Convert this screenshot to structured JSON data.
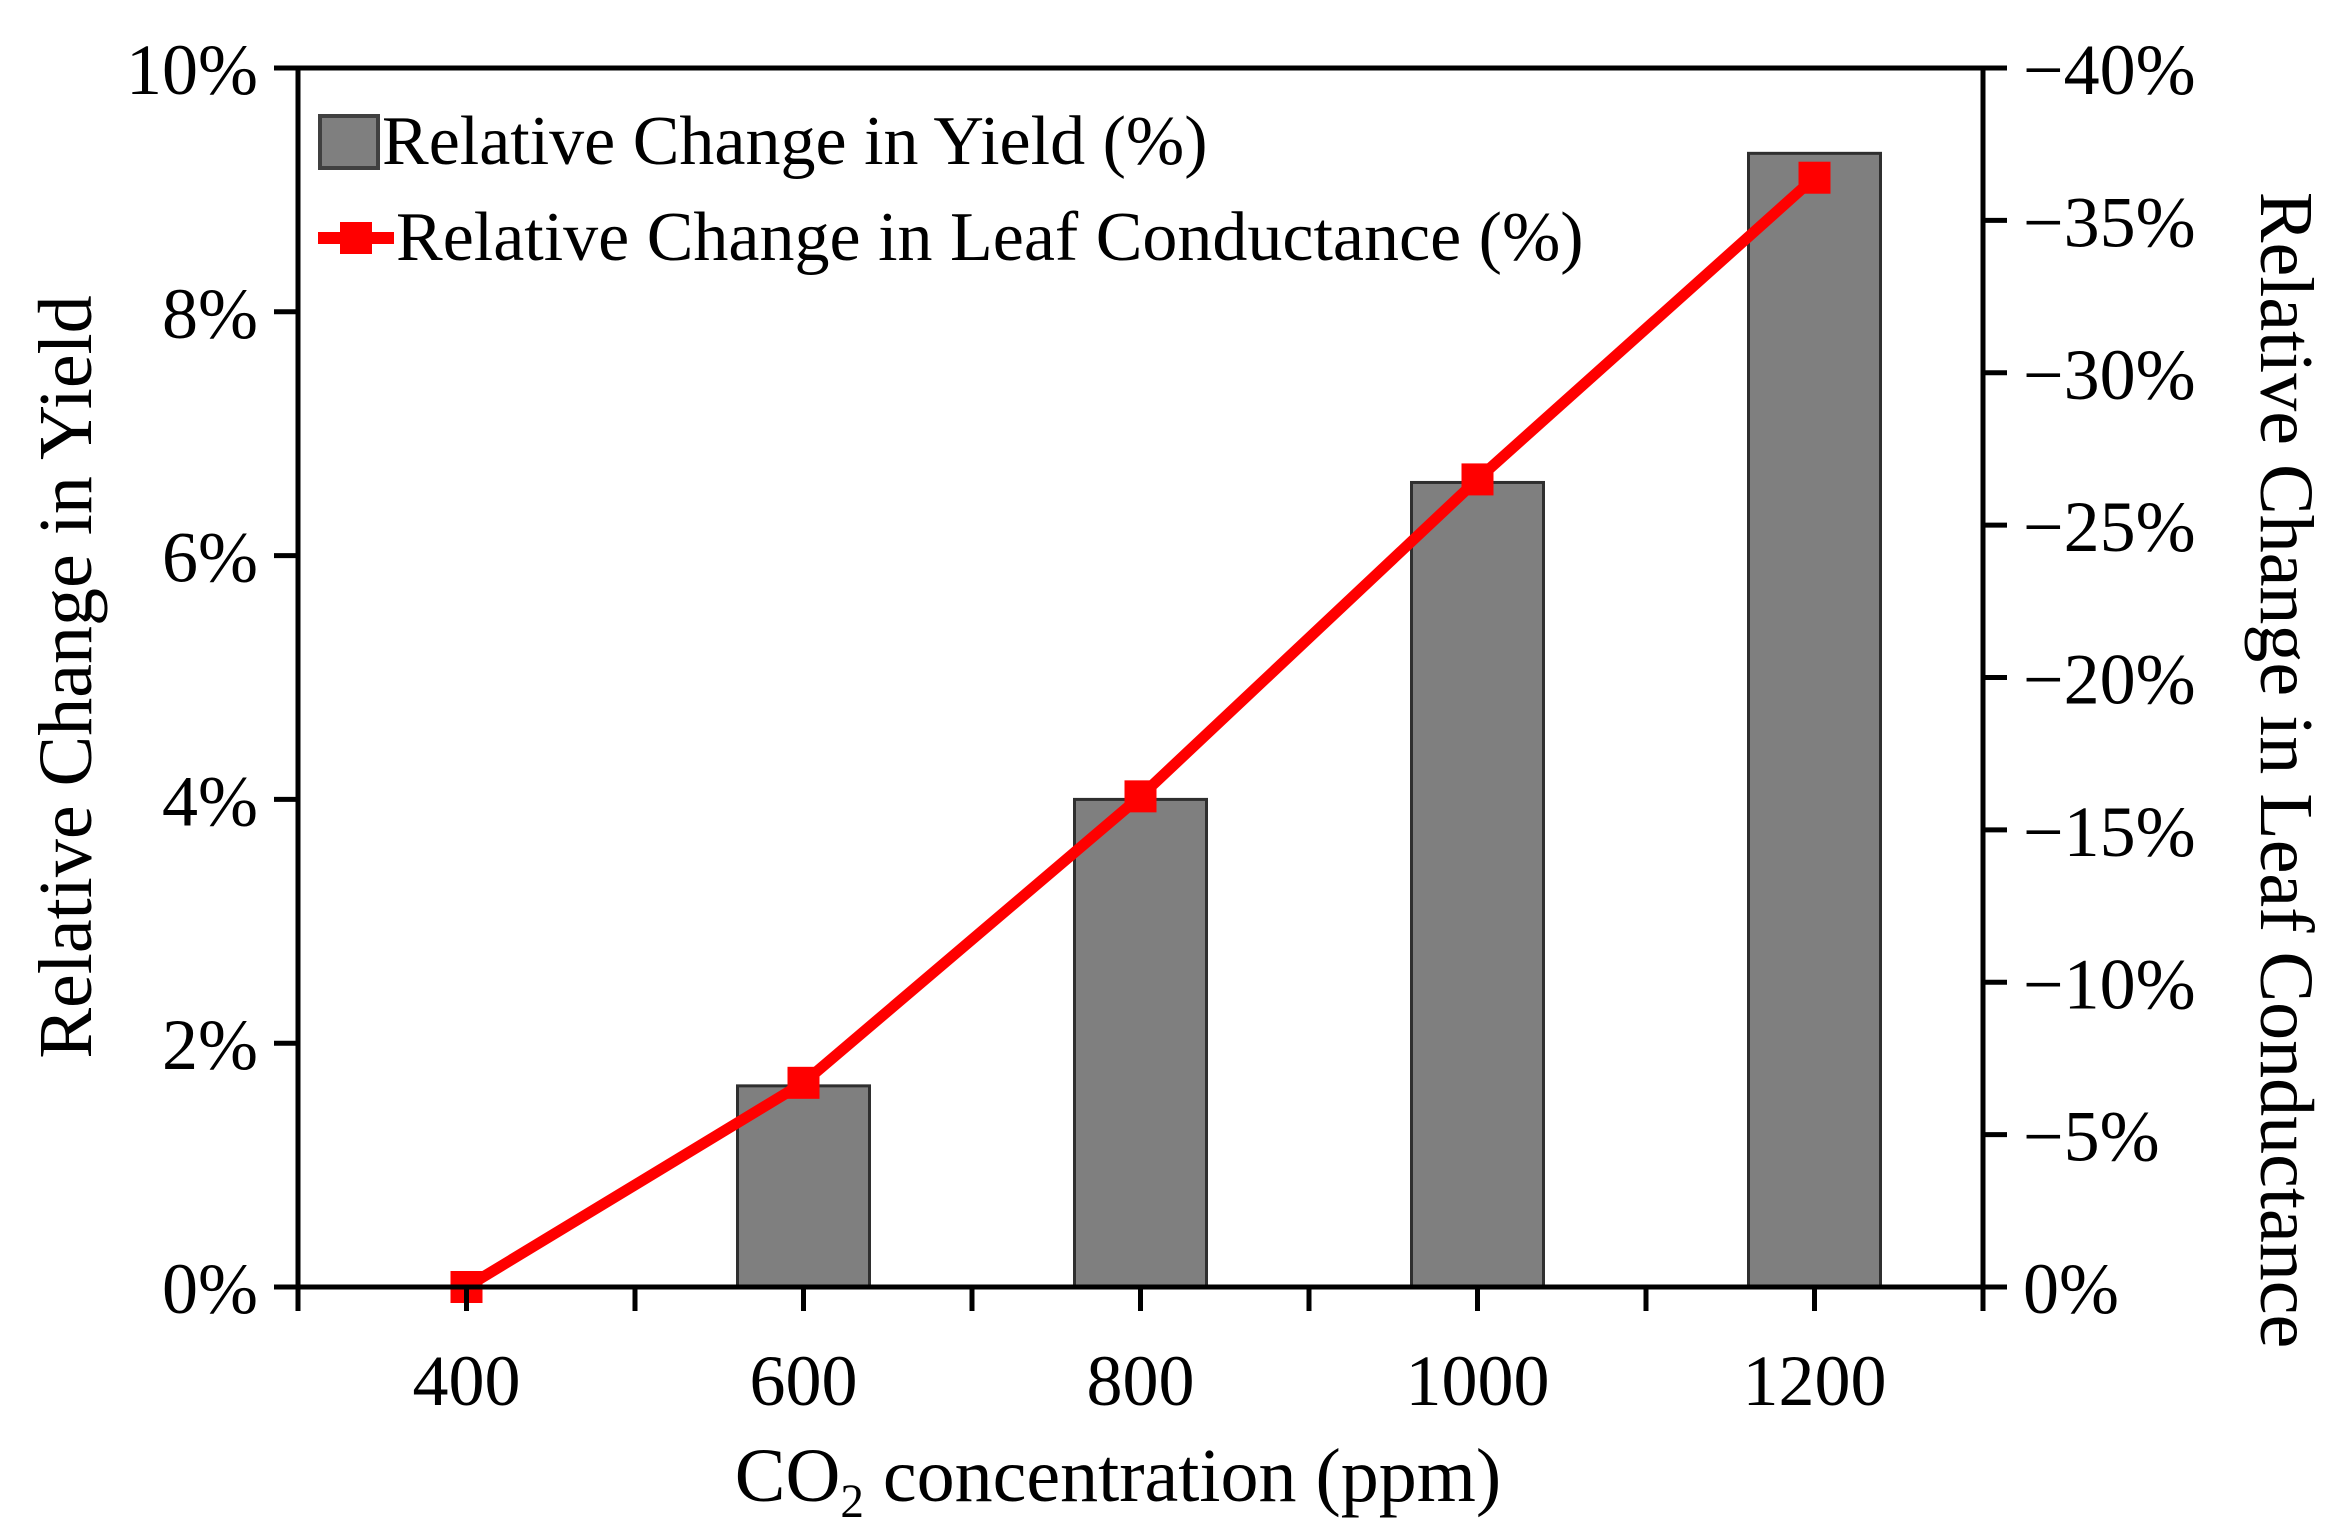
{
  "chart_data": {
    "type": "combo",
    "background": "#ffffff",
    "grid": false,
    "x_axis": {
      "label_prefix": "CO",
      "label_subscript": "2",
      "label_suffix": " concentration (ppm)",
      "min": 300,
      "max": 1300,
      "minor_tick_step": 100,
      "labeled_ticks": [
        400,
        600,
        800,
        1000,
        1200
      ],
      "tick_labels": [
        "400",
        "600",
        "800",
        "1000",
        "1200"
      ]
    },
    "left_axis": {
      "label": "Relative Change in Yield",
      "min": 0,
      "max": 10,
      "ticks": [
        0,
        2,
        4,
        6,
        8,
        10
      ],
      "tick_labels": [
        "0%",
        "2%",
        "4%",
        "6%",
        "8%",
        "10%"
      ]
    },
    "right_axis": {
      "label": "Relative Change in Leaf Conductance",
      "top_value": -40,
      "bottom_value": 0,
      "ticks": [
        0,
        -5,
        -10,
        -15,
        -20,
        -25,
        -30,
        -35,
        -40
      ],
      "tick_labels": [
        "0%",
        "−5%",
        "−10%",
        "−15%",
        "−20%",
        "−25%",
        "−30%",
        "−35%",
        "−40%"
      ]
    },
    "series": [
      {
        "name": "Relative Change in Yield (%)",
        "type": "bar",
        "axis": "left",
        "color": "#7f7f7f",
        "border_color": "#2f2f2f",
        "x": [
          400,
          600,
          800,
          1000,
          1200
        ],
        "values": [
          0,
          1.65,
          4.0,
          6.6,
          9.3
        ]
      },
      {
        "name": "Relative Change in Leaf Conductance (%)",
        "type": "line",
        "axis": "right",
        "color": "#ff0000",
        "marker": "square",
        "x": [
          400,
          600,
          800,
          1000,
          1200
        ],
        "values": [
          0,
          -6.7,
          -16.1,
          -26.5,
          -36.4
        ]
      }
    ],
    "legend": {
      "position": "top-left-inside"
    }
  }
}
